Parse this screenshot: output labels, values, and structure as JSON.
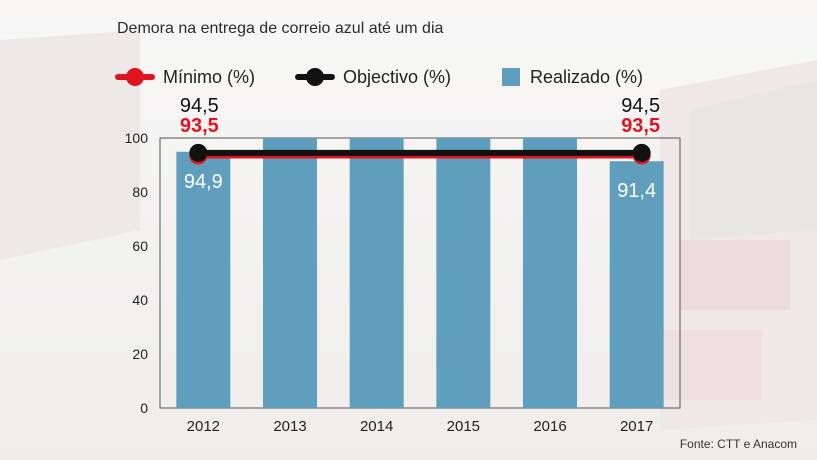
{
  "title": "Demora na entrega de correio azul até um dia",
  "legend": {
    "minimo": "Mínimo (%)",
    "objectivo": "Objectivo (%)",
    "realizado": "Realizado (%)"
  },
  "source": "Fonte: CTT e Anacom",
  "colors": {
    "bar": "#5f9fbd",
    "minimo": "#e0141e",
    "objectivo": "#111111"
  },
  "chart_data": {
    "type": "bar",
    "categories": [
      "2012",
      "2013",
      "2014",
      "2015",
      "2016",
      "2017"
    ],
    "series": [
      {
        "name": "Realizado (%)",
        "values": [
          94.9,
          null,
          null,
          null,
          null,
          91.4
        ],
        "labels": [
          "94,9",
          "",
          "",
          "",
          "",
          "91,4"
        ]
      },
      {
        "name": "Objectivo (%)",
        "type": "line",
        "values": [
          94.5,
          null,
          null,
          null,
          null,
          94.5
        ],
        "labels": [
          "94,5",
          "",
          "",
          "",
          "",
          "94,5"
        ]
      },
      {
        "name": "Mínimo (%)",
        "type": "line",
        "values": [
          93.5,
          null,
          null,
          null,
          null,
          93.5
        ],
        "labels": [
          "93,5",
          "",
          "",
          "",
          "",
          "93,5"
        ]
      }
    ],
    "ylim": [
      0,
      100
    ],
    "yticks": [
      "0",
      "20",
      "40",
      "60",
      "80",
      "100"
    ],
    "grid": false,
    "legend_position": "top"
  }
}
